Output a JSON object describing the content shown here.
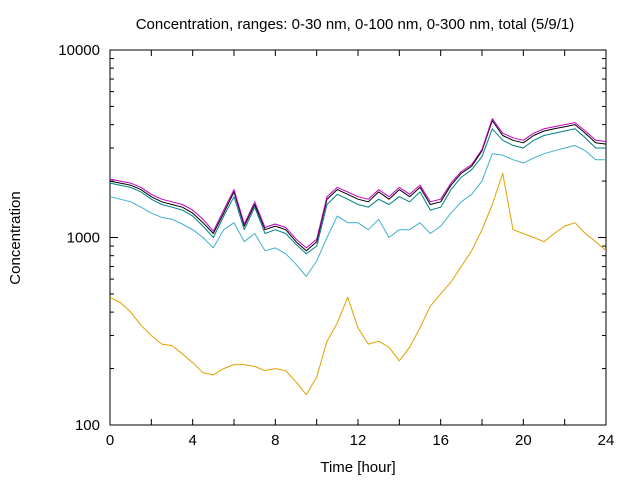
{
  "chart_data": {
    "type": "line",
    "title": "Concentration, ranges: 0-30 nm, 0-100 nm, 0-300 nm, total (5/9/1)",
    "xlabel": "Time [hour]",
    "ylabel": "Concentration",
    "xlim": [
      0,
      24
    ],
    "ylim": [
      100,
      10000
    ],
    "yscale": "log",
    "grid": false,
    "x_ticks": [
      0,
      2,
      4,
      6,
      8,
      10,
      12,
      14,
      16,
      18,
      20,
      22,
      24
    ],
    "x_tick_labels": [
      "0",
      "4",
      "8",
      "12",
      "16",
      "20",
      "24"
    ],
    "x_tick_label_values": [
      0,
      4,
      8,
      12,
      16,
      20,
      24
    ],
    "y_tick_labels": [
      "100",
      "1000",
      "10000"
    ],
    "y_tick_label_values": [
      100,
      1000,
      10000
    ],
    "x": [
      0,
      0.5,
      1,
      1.5,
      2,
      2.5,
      3,
      3.5,
      4,
      4.5,
      5,
      5.5,
      6,
      6.5,
      7,
      7.5,
      8,
      8.5,
      9,
      9.5,
      10,
      10.5,
      11,
      11.5,
      12,
      12.5,
      13,
      13.5,
      14,
      14.5,
      15,
      15.5,
      16,
      16.5,
      17,
      17.5,
      18,
      18.5,
      19,
      19.5,
      20,
      20.5,
      21,
      21.5,
      22,
      22.5,
      23,
      23.5,
      24
    ],
    "series": [
      {
        "color": "#e0a000",
        "values": [
          480,
          450,
          400,
          340,
          300,
          270,
          265,
          240,
          215,
          190,
          185,
          200,
          210,
          210,
          205,
          195,
          200,
          195,
          170,
          145,
          180,
          280,
          350,
          480,
          330,
          270,
          280,
          260,
          220,
          260,
          330,
          430,
          500,
          580,
          700,
          850,
          1100,
          1500,
          2200,
          1100,
          1050,
          1000,
          950,
          1050,
          1150,
          1200,
          1050,
          950,
          850
        ]
      },
      {
        "color": "#40b0d0",
        "values": [
          1650,
          1600,
          1550,
          1450,
          1350,
          1280,
          1250,
          1180,
          1100,
          1000,
          880,
          1100,
          1200,
          950,
          1050,
          850,
          880,
          820,
          720,
          620,
          750,
          1000,
          1300,
          1200,
          1200,
          1100,
          1250,
          1000,
          1100,
          1100,
          1200,
          1050,
          1150,
          1350,
          1550,
          1700,
          2000,
          2800,
          2750,
          2600,
          2500,
          2650,
          2800,
          2900,
          3000,
          3100,
          2900,
          2600,
          2600
        ]
      },
      {
        "color": "#008080",
        "values": [
          1950,
          1900,
          1850,
          1750,
          1600,
          1500,
          1450,
          1400,
          1300,
          1150,
          1000,
          1300,
          1650,
          1100,
          1450,
          1050,
          1100,
          1050,
          920,
          820,
          900,
          1500,
          1700,
          1600,
          1500,
          1450,
          1600,
          1500,
          1650,
          1550,
          1750,
          1400,
          1450,
          1800,
          2100,
          2300,
          2700,
          3800,
          3300,
          3100,
          3000,
          3300,
          3500,
          3600,
          3700,
          3800,
          3400,
          3000,
          3000
        ]
      },
      {
        "color": "#000000",
        "values": [
          2000,
          1950,
          1900,
          1800,
          1650,
          1550,
          1500,
          1450,
          1350,
          1200,
          1050,
          1350,
          1750,
          1150,
          1500,
          1100,
          1150,
          1100,
          950,
          850,
          950,
          1600,
          1800,
          1700,
          1600,
          1550,
          1750,
          1600,
          1800,
          1650,
          1850,
          1500,
          1550,
          1900,
          2200,
          2400,
          2900,
          4200,
          3500,
          3300,
          3200,
          3500,
          3700,
          3800,
          3900,
          4000,
          3600,
          3200,
          3150
        ]
      },
      {
        "color": "#c000c0",
        "values": [
          2050,
          2000,
          1950,
          1850,
          1700,
          1600,
          1550,
          1500,
          1400,
          1250,
          1080,
          1400,
          1800,
          1180,
          1550,
          1130,
          1180,
          1130,
          980,
          880,
          980,
          1650,
          1850,
          1750,
          1650,
          1600,
          1800,
          1650,
          1850,
          1700,
          1900,
          1550,
          1600,
          1950,
          2250,
          2450,
          2950,
          4300,
          3600,
          3400,
          3300,
          3600,
          3800,
          3900,
          4000,
          4100,
          3700,
          3300,
          3250
        ]
      }
    ]
  }
}
